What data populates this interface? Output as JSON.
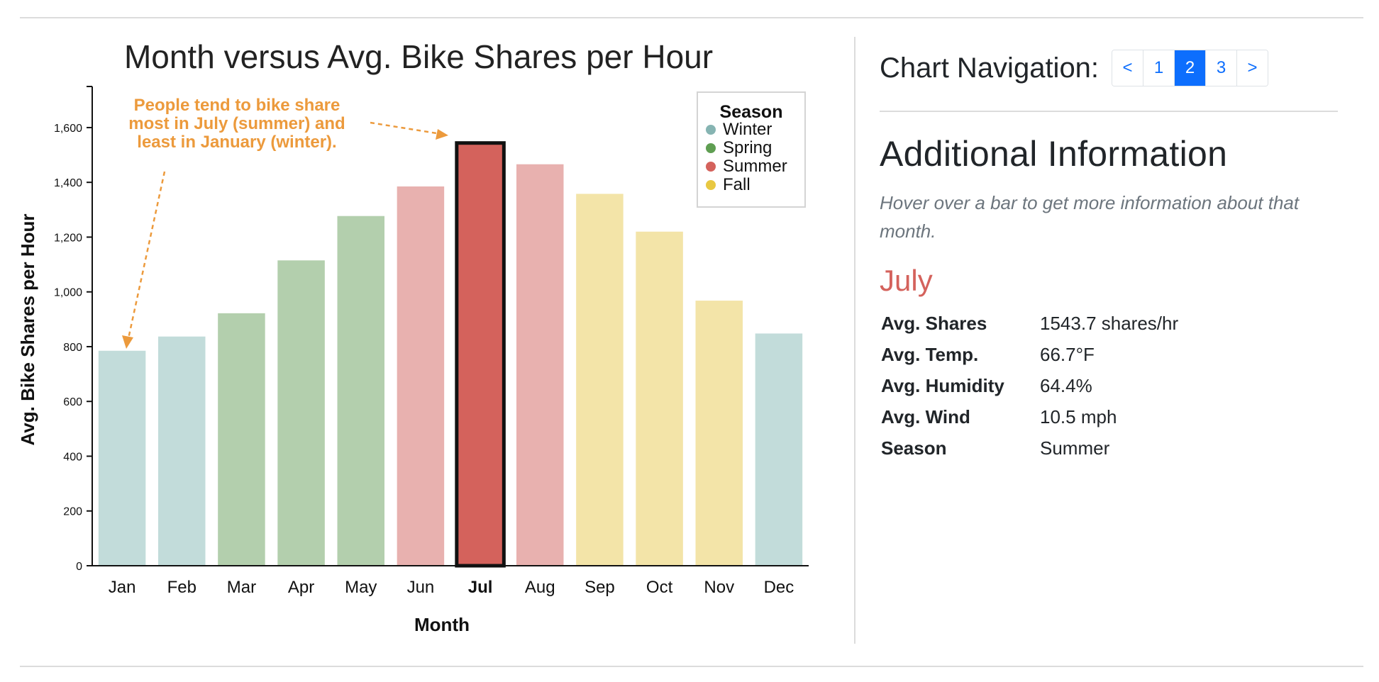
{
  "chart_data": {
    "type": "bar",
    "title": "Month versus Avg. Bike Shares per Hour",
    "xlabel": "Month",
    "ylabel": "Avg. Bike Shares per Hour",
    "ylim": [
      0,
      1750
    ],
    "yticks": [
      0,
      200,
      400,
      600,
      800,
      1000,
      1200,
      1400,
      1600
    ],
    "ytick_labels": [
      "0",
      "200",
      "400",
      "600",
      "800",
      "1,000",
      "1,200",
      "1,400",
      "1,600"
    ],
    "categories": [
      "Jan",
      "Feb",
      "Mar",
      "Apr",
      "May",
      "Jun",
      "Jul",
      "Aug",
      "Sep",
      "Oct",
      "Nov",
      "Dec"
    ],
    "values": [
      785,
      837,
      922,
      1115,
      1277,
      1385,
      1543.7,
      1466,
      1358,
      1220,
      968,
      848
    ],
    "seasons": [
      "Winter",
      "Winter",
      "Spring",
      "Spring",
      "Spring",
      "Summer",
      "Summer",
      "Summer",
      "Fall",
      "Fall",
      "Fall",
      "Winter"
    ],
    "highlighted": "Jul",
    "legend": {
      "title": "Season",
      "placement": "top-right",
      "entries": [
        {
          "name": "Winter",
          "color": "#86b4b2"
        },
        {
          "name": "Spring",
          "color": "#5f9e52"
        },
        {
          "name": "Summer",
          "color": "#d4625c"
        },
        {
          "name": "Fall",
          "color": "#e8c842"
        }
      ]
    },
    "bar_colors": {
      "Winter": "#c2dcda",
      "Spring": "#b3cfad",
      "Summer": "#e8b1af",
      "Fall": "#f3e4a8",
      "highlight": "#d4625c"
    },
    "annotation": {
      "lines": [
        "People tend to bike share",
        "most in July (summer) and",
        "least in January (winter)."
      ],
      "color": "#ec9a3c"
    },
    "grid": false
  },
  "nav": {
    "title": "Chart Navigation:",
    "pages": [
      "<",
      "1",
      "2",
      "3",
      ">"
    ],
    "active": "2"
  },
  "info": {
    "title": "Additional Information",
    "hint": "Hover over a bar to get more information about that month.",
    "month": "July",
    "rows": [
      {
        "label": "Avg. Shares",
        "value": "1543.7 shares/hr"
      },
      {
        "label": "Avg. Temp.",
        "value": "66.7°F"
      },
      {
        "label": "Avg. Humidity",
        "value": "64.4%"
      },
      {
        "label": "Avg. Wind",
        "value": "10.5 mph"
      },
      {
        "label": "Season",
        "value": "Summer"
      }
    ]
  }
}
